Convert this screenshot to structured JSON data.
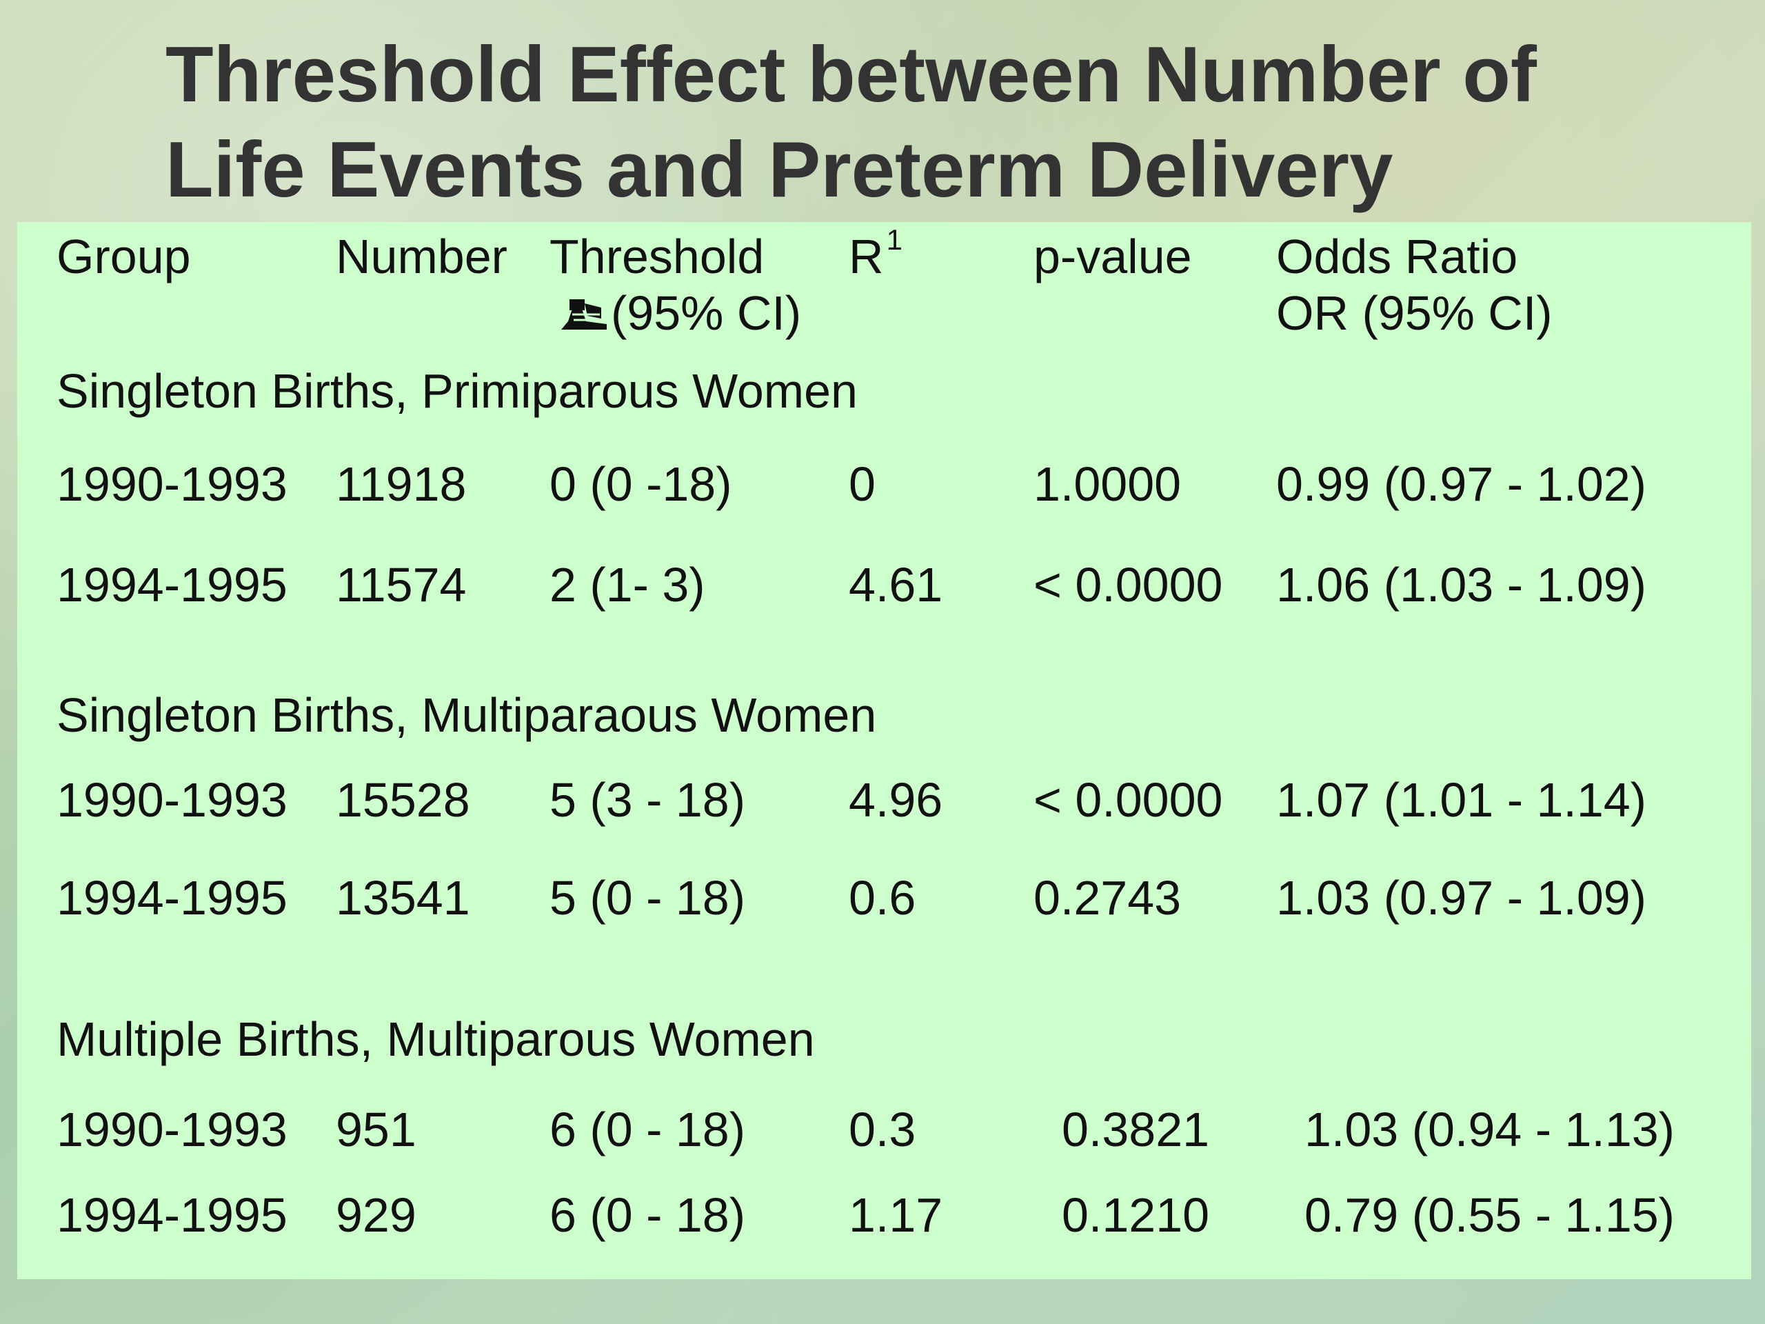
{
  "slide": {
    "title_line1": "Threshold Effect between Number of",
    "title_line2": "Life Events and Preterm Delivery"
  },
  "table": {
    "headers": {
      "group": "Group",
      "number": "Number",
      "threshold": "Threshold",
      "threshold_sub": "(95% CI)",
      "r": "R",
      "r_sup": "1",
      "pvalue": "p-value",
      "odds": "Odds Ratio",
      "odds_sub": "OR  (95% CI)"
    },
    "sections": [
      {
        "label": "Singleton Births, Primiparous Women",
        "rows": [
          {
            "group": "1990-1993",
            "number": "11918",
            "threshold": "0  (0 -18)",
            "r": "0",
            "pvalue": "1.0000",
            "odds": "0.99 (0.97 - 1.02)"
          },
          {
            "group": "1994-1995",
            "number": "11574",
            "threshold": "2 (1- 3)",
            "r": "4.61",
            "pvalue": "< 0.0000",
            "odds": "1.06 (1.03 - 1.09)"
          }
        ]
      },
      {
        "label": "Singleton Births, Multiparaous Women",
        "rows": [
          {
            "group": "1990-1993",
            "number": "15528",
            "threshold": "5 (3 - 18)",
            "r": "4.96",
            "pvalue": "< 0.0000",
            "odds": "1.07 (1.01 - 1.14)"
          },
          {
            "group": "1994-1995",
            "number": "13541",
            "threshold": "5 (0 - 18)",
            "r": "0.6",
            "pvalue": "0.2743",
            "odds": "1.03 (0.97 - 1.09)"
          }
        ]
      },
      {
        "label": "Multiple Births, Multiparous Women",
        "rows": [
          {
            "group": "1990-1993",
            "number": "951",
            "threshold": "6 (0 - 18)",
            "r": "0.3",
            "pvalue": "0.3821",
            "odds": "1.03 (0.94 - 1.13)"
          },
          {
            "group": "1994-1995",
            "number": "929",
            "threshold": "6 (0 - 18)",
            "r": "1.17",
            "pvalue": "0.1210",
            "odds": "0.79 (0.55 - 1.15)"
          }
        ]
      }
    ]
  },
  "icons": {
    "threshold_glyph": "lamp-icon"
  }
}
